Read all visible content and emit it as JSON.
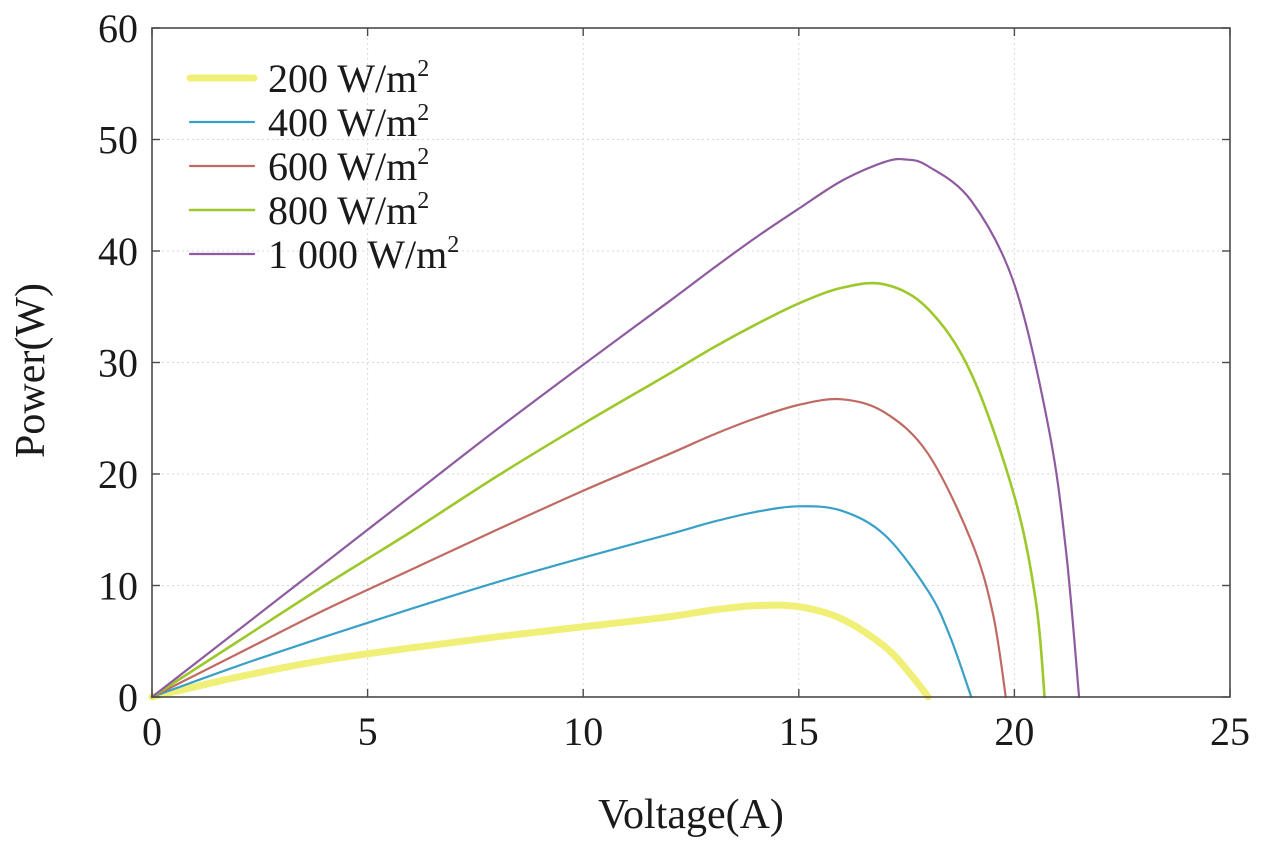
{
  "chart_data": {
    "type": "line",
    "title": "",
    "xlabel": "Voltage(A)",
    "ylabel": "Power(W)",
    "xlim": [
      0,
      25
    ],
    "ylim": [
      0,
      60
    ],
    "xticks": [
      0,
      5,
      10,
      15,
      20,
      25
    ],
    "yticks": [
      0,
      10,
      20,
      30,
      40,
      50,
      60
    ],
    "grid": true,
    "legend_position": "top-left",
    "series": [
      {
        "name": "200 W/m",
        "name_sup": "2",
        "color": "#f0f078",
        "x": [
          0,
          2,
          4,
          6,
          8,
          10,
          12,
          13,
          14,
          15,
          16,
          17,
          17.6,
          18.0
        ],
        "y": [
          0,
          1.8,
          3.3,
          4.4,
          5.4,
          6.3,
          7.2,
          7.8,
          8.2,
          8.1,
          7.0,
          4.5,
          2.0,
          0
        ]
      },
      {
        "name": "400 W/m",
        "name_sup": "2",
        "color": "#3aa0c8",
        "x": [
          0,
          2,
          4,
          6,
          8,
          10,
          12,
          13,
          14,
          15,
          16,
          17,
          18,
          18.5,
          19.0
        ],
        "y": [
          0,
          2.8,
          5.4,
          7.9,
          10.3,
          12.5,
          14.6,
          15.7,
          16.6,
          17.1,
          16.7,
          14.5,
          9.5,
          5.5,
          0
        ]
      },
      {
        "name": "600 W/m",
        "name_sup": "2",
        "color": "#c06a64",
        "x": [
          0,
          2,
          4,
          6,
          8,
          10,
          12,
          13,
          14,
          15,
          16,
          17,
          18,
          19,
          19.5,
          19.8
        ],
        "y": [
          0,
          3.9,
          7.8,
          11.4,
          15.0,
          18.5,
          21.8,
          23.5,
          25.0,
          26.2,
          26.7,
          25.5,
          21.8,
          14.0,
          7.5,
          0
        ]
      },
      {
        "name": "800 W/m",
        "name_sup": "2",
        "color": "#9cc82c",
        "x": [
          0,
          2,
          4,
          6,
          8,
          10,
          12,
          13,
          14,
          15,
          16,
          17,
          18,
          19,
          20,
          20.5,
          20.7
        ],
        "y": [
          0,
          5.0,
          10.0,
          14.8,
          19.8,
          24.5,
          29.0,
          31.3,
          33.4,
          35.3,
          36.7,
          37.0,
          34.8,
          29.0,
          18.0,
          8.5,
          0
        ]
      },
      {
        "name": "1 000 W/m",
        "name_sup": "2",
        "color": "#8e5aa0",
        "x": [
          0,
          2,
          4,
          6,
          8,
          10,
          12,
          13,
          14,
          15,
          16,
          17,
          17.5,
          18,
          19,
          20,
          20.8,
          21.2,
          21.5
        ],
        "y": [
          0,
          6.0,
          12.0,
          18.0,
          24.0,
          29.8,
          35.5,
          38.4,
          41.2,
          43.8,
          46.3,
          48.0,
          48.2,
          47.6,
          44.5,
          37.0,
          24.0,
          13.0,
          0
        ]
      }
    ]
  }
}
